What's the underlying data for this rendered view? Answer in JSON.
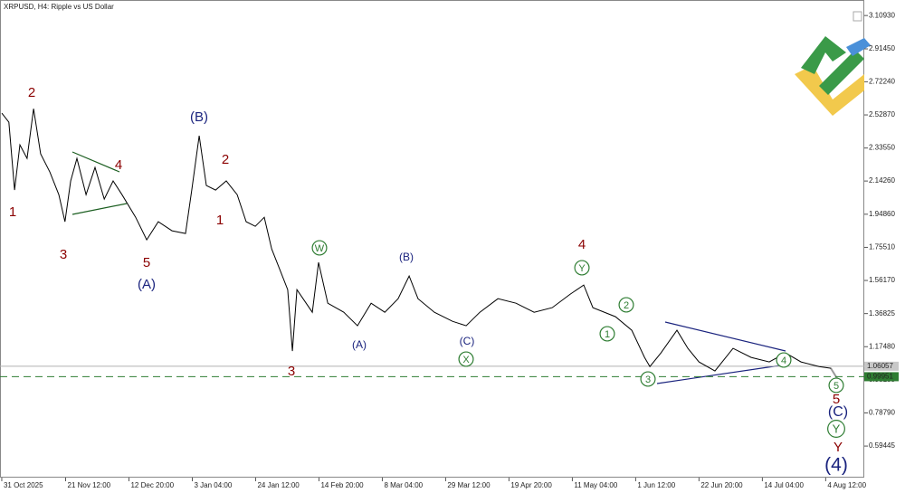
{
  "chart_data": {
    "type": "line",
    "title": "XRPUSD, H4:  Ripple vs US Dollar",
    "xlim": [
      -0.6,
      290.5
    ],
    "ylim": [
      0.41,
      3.2
    ],
    "xticks": [
      {
        "value": 0,
        "label": "31 Oct 2025"
      },
      {
        "value": 21.5,
        "label": "21 Nov 12:00"
      },
      {
        "value": 42.83,
        "label": "12 Dec 20:00"
      },
      {
        "value": 64.17,
        "label": "3 Jan 04:00"
      },
      {
        "value": 85.5,
        "label": "24 Jan 12:00"
      },
      {
        "value": 106.83,
        "label": "14 Feb 20:00"
      },
      {
        "value": 128.17,
        "label": "8 Mar 04:00"
      },
      {
        "value": 149.5,
        "label": "29 Mar 12:00"
      },
      {
        "value": 170.83,
        "label": "19 Apr 20:00"
      },
      {
        "value": 192.17,
        "label": "11 May 04:00"
      },
      {
        "value": 213.5,
        "label": "1 Jun 12:00"
      },
      {
        "value": 234.83,
        "label": "22 Jun 20:00"
      },
      {
        "value": 256.17,
        "label": "14 Jul 04:00"
      },
      {
        "value": 277.5,
        "label": "4 Aug 12:00"
      }
    ],
    "yticks": [
      {
        "value": 3.1093,
        "label": "3.10930"
      },
      {
        "value": 2.9145,
        "label": "2.91450"
      },
      {
        "value": 2.7224,
        "label": "2.72240"
      },
      {
        "value": 2.5287,
        "label": "2.52870"
      },
      {
        "value": 2.3355,
        "label": "2.33550"
      },
      {
        "value": 2.1426,
        "label": "2.14260"
      },
      {
        "value": 1.9486,
        "label": "1.94860"
      },
      {
        "value": 1.7551,
        "label": "1.75510"
      },
      {
        "value": 1.5617,
        "label": "1.56170"
      },
      {
        "value": 1.36825,
        "label": "1.36825"
      },
      {
        "value": 1.1748,
        "label": "1.17480"
      },
      {
        "value": 0.98135,
        "label": "0.98135"
      },
      {
        "value": 0.7879,
        "label": "0.78790"
      },
      {
        "value": 0.59445,
        "label": "0.59445"
      }
    ],
    "series": [
      {
        "name": "XRPUSD",
        "color": "#000000",
        "x": [
          0,
          2.4,
          4.3,
          6.1,
          8.5,
          10.7,
          13.1,
          16.2,
          19.2,
          21.3,
          23.2,
          25.3,
          28.4,
          31.4,
          34.5,
          37.5,
          40.5,
          45.1,
          48.8,
          52.7,
          57.3,
          61.9,
          64,
          66.5,
          68.9,
          72,
          75.6,
          79.3,
          82.3,
          85.4,
          88.4,
          90.9,
          93.9,
          96.3,
          97.9,
          99.4,
          104.6,
          106.7,
          109.8,
          115.2,
          119.8,
          124.4,
          129,
          133.5,
          137.2,
          140.2,
          145.7,
          151.8,
          156.4,
          161,
          167.1,
          173.2,
          179.3,
          185.4,
          191.5,
          196,
          199.1,
          206.7,
          212.2,
          216.5,
          218.3,
          222,
          227.4,
          231.1,
          234.8,
          240.2,
          246.3,
          252.4,
          258.5,
          264,
          269.2,
          275.3,
          279.3
        ],
        "values": [
          2.539,
          2.486,
          2.09,
          2.354,
          2.275,
          2.565,
          2.301,
          2.195,
          2.063,
          1.905,
          2.143,
          2.275,
          2.063,
          2.222,
          2.037,
          2.143,
          2.063,
          1.931,
          1.799,
          1.905,
          1.852,
          1.836,
          2.09,
          2.407,
          2.116,
          2.09,
          2.143,
          2.063,
          1.905,
          1.878,
          1.931,
          1.746,
          1.614,
          1.508,
          1.149,
          1.508,
          1.376,
          1.667,
          1.429,
          1.376,
          1.297,
          1.429,
          1.376,
          1.455,
          1.588,
          1.455,
          1.376,
          1.323,
          1.297,
          1.376,
          1.455,
          1.429,
          1.376,
          1.403,
          1.482,
          1.535,
          1.403,
          1.35,
          1.271,
          1.112,
          1.059,
          1.138,
          1.271,
          1.165,
          1.086,
          1.033,
          1.165,
          1.112,
          1.086,
          1.138,
          1.086,
          1.059,
          1.049
        ]
      }
    ],
    "price_lines": [
      {
        "value": 1.06057,
        "color": "#b0b0b0"
      },
      {
        "value": 0.99951,
        "color": "#2e7d32",
        "dashed": true
      }
    ],
    "annotations": [
      {
        "text": "1",
        "color": "#8b0000"
      },
      {
        "text": "2",
        "color": "#8b0000"
      },
      {
        "text": "3",
        "color": "#8b0000"
      },
      {
        "text": "4",
        "color": "#8b0000"
      },
      {
        "text": "5",
        "color": "#8b0000"
      },
      {
        "text": "1",
        "color": "#8b0000"
      },
      {
        "text": "2",
        "color": "#8b0000"
      },
      {
        "text": "3",
        "color": "#8b0000"
      },
      {
        "text": "4",
        "color": "#8b0000"
      },
      {
        "text": "5",
        "color": "#8b0000"
      },
      {
        "text": "Y",
        "color": "#8b0000"
      },
      {
        "text": "(A)",
        "color": "#1a237e"
      },
      {
        "text": "(B)",
        "color": "#1a237e"
      },
      {
        "text": "(A)",
        "color": "#1a237e"
      },
      {
        "text": "(B)",
        "color": "#1a237e"
      },
      {
        "text": "(C)",
        "color": "#1a237e"
      },
      {
        "text": "(C)",
        "color": "#1a237e"
      },
      {
        "text": "(4)",
        "color": "#1a237e"
      },
      {
        "text": "W",
        "color": "#2e7d32",
        "circled": true
      },
      {
        "text": "X",
        "color": "#2e7d32",
        "circled": true
      },
      {
        "text": "Y",
        "color": "#2e7d32",
        "circled": true
      },
      {
        "text": "1",
        "color": "#2e7d32",
        "circled": true
      },
      {
        "text": "2",
        "color": "#2e7d32",
        "circled": true
      },
      {
        "text": "3",
        "color": "#2e7d32",
        "circled": true
      },
      {
        "text": "4",
        "color": "#2e7d32",
        "circled": true
      },
      {
        "text": "5",
        "color": "#2e7d32",
        "circled": true
      },
      {
        "text": "Y",
        "color": "#2e7d32",
        "circled": true
      }
    ]
  }
}
